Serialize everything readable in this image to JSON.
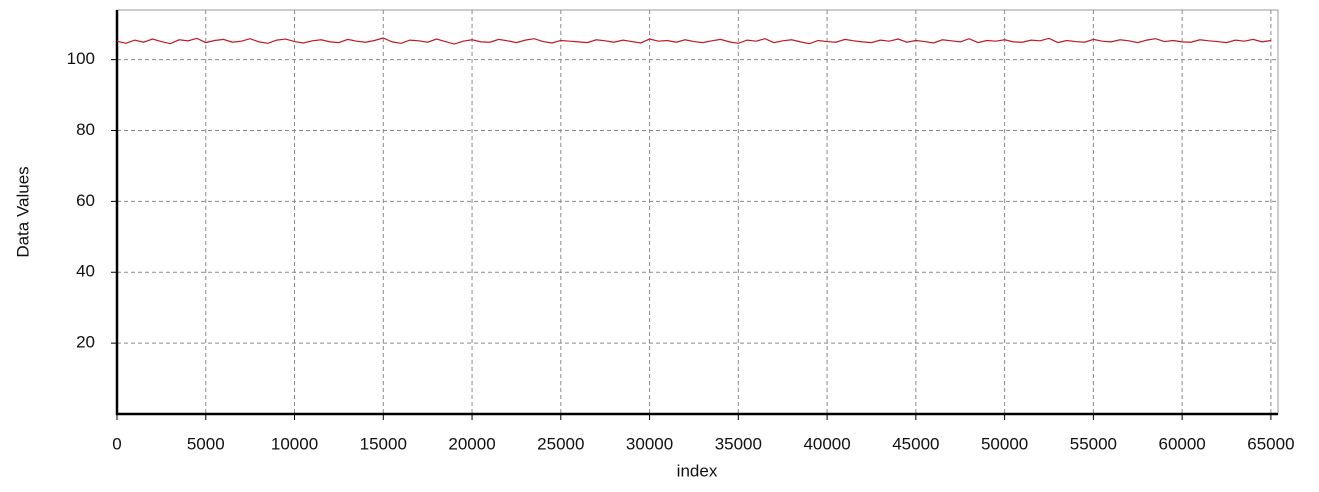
{
  "chart_data": {
    "type": "line",
    "x_label": "index",
    "y_label": "Data Values",
    "x": [
      0,
      500,
      1000,
      1500,
      2000,
      2500,
      3000,
      3500,
      4000,
      4500,
      5000,
      5500,
      6000,
      6500,
      7000,
      7500,
      8000,
      8500,
      9000,
      9500,
      10000,
      10500,
      11000,
      11500,
      12000,
      12500,
      13000,
      13500,
      14000,
      14500,
      15000,
      15500,
      16000,
      16500,
      17000,
      17500,
      18000,
      18500,
      19000,
      19500,
      20000,
      20500,
      21000,
      21500,
      22000,
      22500,
      23000,
      23500,
      24000,
      24500,
      25000,
      25500,
      26000,
      26500,
      27000,
      27500,
      28000,
      28500,
      29000,
      29500,
      30000,
      30500,
      31000,
      31500,
      32000,
      32500,
      33000,
      33500,
      34000,
      34500,
      35000,
      35500,
      36000,
      36500,
      37000,
      37500,
      38000,
      38500,
      39000,
      39500,
      40000,
      40500,
      41000,
      41500,
      42000,
      42500,
      43000,
      43500,
      44000,
      44500,
      45000,
      45500,
      46000,
      46500,
      47000,
      47500,
      48000,
      48500,
      49000,
      49500,
      50000,
      50500,
      51000,
      51500,
      52000,
      52500,
      53000,
      53500,
      54000,
      54500,
      55000,
      55500,
      56000,
      56500,
      57000,
      57500,
      58000,
      58500,
      59000,
      59500,
      60000,
      60500,
      61000,
      61500,
      62000,
      62500,
      63000,
      63500,
      64000,
      64500,
      65000
    ],
    "series": [
      {
        "color": "#c0191f",
        "values": [
          105.2,
          104.6,
          105.5,
          104.9,
          105.8,
          105.1,
          104.5,
          105.6,
          105.3,
          106.0,
          104.8,
          105.4,
          105.7,
          104.9,
          105.2,
          105.9,
          105.0,
          104.6,
          105.5,
          105.8,
          105.1,
          104.7,
          105.3,
          105.6,
          105.0,
          104.8,
          105.7,
          105.2,
          104.9,
          105.4,
          106.1,
          105.0,
          104.6,
          105.5,
          105.3,
          104.9,
          105.8,
          105.1,
          104.4,
          105.2,
          105.6,
          105.0,
          104.9,
          105.7,
          105.3,
          104.8,
          105.5,
          105.9,
          105.1,
          104.7,
          105.4,
          105.2,
          105.0,
          104.8,
          105.6,
          105.3,
          104.9,
          105.5,
          105.1,
          104.7,
          105.8,
          105.2,
          105.4,
          104.9,
          105.6,
          105.1,
          104.8,
          105.3,
          105.7,
          105.0,
          104.6,
          105.5,
          105.2,
          105.9,
          104.8,
          105.3,
          105.6,
          105.0,
          104.5,
          105.4,
          105.1,
          104.9,
          105.7,
          105.3,
          105.0,
          104.8,
          105.5,
          105.2,
          105.8,
          104.9,
          105.4,
          105.1,
          104.7,
          105.6,
          105.3,
          105.0,
          105.9,
          104.8,
          105.4,
          105.2,
          105.6,
          105.0,
          104.9,
          105.5,
          105.3,
          106.0,
          104.8,
          105.4,
          105.1,
          104.9,
          105.7,
          105.2,
          105.0,
          105.6,
          105.3,
          104.8,
          105.5,
          105.9,
          105.1,
          105.4,
          105.0,
          104.9,
          105.6,
          105.3,
          105.1,
          104.8,
          105.5,
          105.2,
          105.7,
          105.0,
          105.4
        ]
      }
    ],
    "xlim": [
      0,
      65400
    ],
    "xticks": [
      0,
      5000,
      10000,
      15000,
      20000,
      25000,
      30000,
      35000,
      40000,
      45000,
      50000,
      55000,
      60000,
      65000
    ],
    "ylim": [
      0,
      114
    ],
    "yticks": [
      20,
      40,
      60,
      80,
      100
    ],
    "grid": true
  }
}
